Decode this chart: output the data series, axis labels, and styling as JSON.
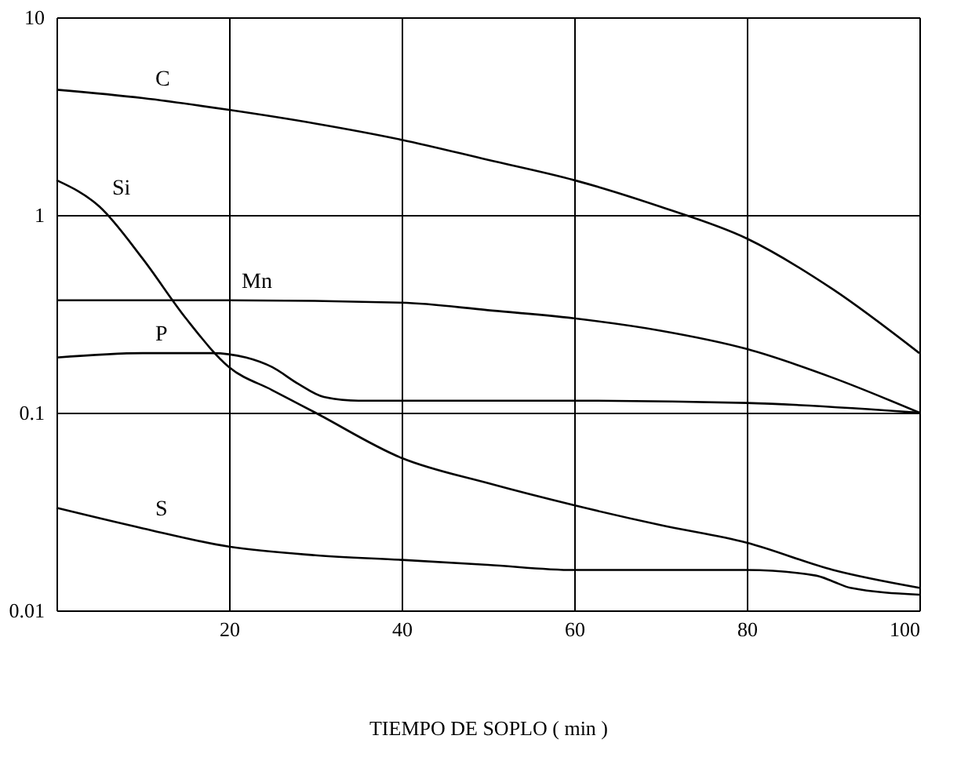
{
  "chart_data": {
    "type": "line",
    "xlabel": "TIEMPO DE SOPLO ( min )",
    "xlim": [
      0,
      100
    ],
    "xticks": [
      20,
      40,
      60,
      80,
      100
    ],
    "ylim": [
      0.01,
      10
    ],
    "yticks": [
      0.01,
      0.1,
      1,
      10
    ],
    "log": true,
    "grid": true,
    "legend": false,
    "line_style": "solid",
    "marker": "none",
    "series": [
      {
        "name": "C",
        "color": "#000000",
        "x": [
          0,
          10,
          20,
          30,
          40,
          50,
          60,
          70,
          80,
          90,
          100
        ],
        "values": [
          4.3,
          3.9,
          3.4,
          2.9,
          2.4,
          1.9,
          1.5,
          1.1,
          0.76,
          0.42,
          0.2
        ]
      },
      {
        "name": "Si",
        "color": "#000000",
        "x": [
          0,
          5,
          10,
          15,
          20,
          25,
          30,
          40,
          50,
          60,
          70,
          80,
          90,
          100
        ],
        "values": [
          1.5,
          1.1,
          0.6,
          0.3,
          0.17,
          0.13,
          0.1,
          0.059,
          0.044,
          0.034,
          0.027,
          0.022,
          0.016,
          0.013
        ]
      },
      {
        "name": "Mn",
        "color": "#000000",
        "x": [
          0,
          20,
          40,
          50,
          60,
          70,
          80,
          90,
          100
        ],
        "values": [
          0.37,
          0.37,
          0.36,
          0.33,
          0.3,
          0.26,
          0.21,
          0.15,
          0.1
        ]
      },
      {
        "name": "P",
        "color": "#000000",
        "x": [
          0,
          10,
          18,
          22,
          25,
          28,
          31,
          35,
          60,
          80,
          100
        ],
        "values": [
          0.19,
          0.2,
          0.2,
          0.19,
          0.17,
          0.14,
          0.12,
          0.115,
          0.115,
          0.112,
          0.1
        ]
      },
      {
        "name": "S",
        "color": "#000000",
        "x": [
          0,
          10,
          20,
          30,
          40,
          50,
          60,
          70,
          80,
          88,
          90,
          92,
          100
        ],
        "values": [
          0.033,
          0.026,
          0.021,
          0.019,
          0.018,
          0.017,
          0.016,
          0.016,
          0.016,
          0.015,
          0.014,
          0.013,
          0.012
        ]
      }
    ]
  }
}
